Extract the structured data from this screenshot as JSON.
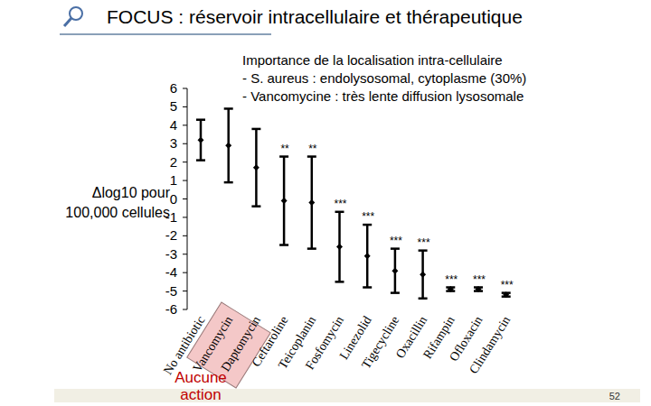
{
  "slide": {
    "title": "FOCUS : réservoir intracellulaire et thérapeutique",
    "text": [
      "Importance de la localisation intra-cellulaire",
      "- S. aureus : endolysosomal, cytoplasme (30%)",
      "- Vancomycine : très lente diffusion lysosomale"
    ],
    "page": 52
  },
  "chart_data": {
    "type": "scatter",
    "marker": "diamond",
    "color": "#000000",
    "grid": false,
    "ylabel": "Δlog10 pour\n100,000 cellules",
    "categories": [
      "No antibiotic",
      "Vancomycin",
      "Daptomycin",
      "Ceftaroline",
      "Teicoplanin",
      "Fosfomycin",
      "Linezolid",
      "Tigecycline",
      "Oxacillin",
      "Rifampin",
      "Ofloxacin",
      "Clindamycin"
    ],
    "values": [
      3.2,
      2.9,
      1.7,
      -0.1,
      -0.2,
      -2.6,
      -3.1,
      -3.9,
      -4.1,
      -4.9,
      -4.9,
      -5.2
    ],
    "errors": [
      1.1,
      2.0,
      2.1,
      2.4,
      2.5,
      1.9,
      1.7,
      1.2,
      1.3,
      0.1,
      0.1,
      0.1
    ],
    "significance": [
      null,
      null,
      null,
      "**",
      "**",
      "***",
      "***",
      "***",
      "***",
      "***",
      "***",
      "***"
    ],
    "note": "Aucune\naction",
    "ylim": [
      -6,
      6
    ],
    "yticks": [
      -6,
      -5,
      -4,
      -3,
      -2,
      -1,
      0,
      1,
      2,
      3,
      4,
      5,
      6
    ]
  }
}
